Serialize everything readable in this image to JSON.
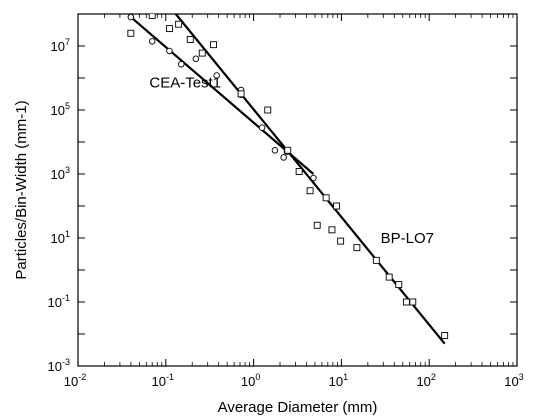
{
  "chart_data": {
    "type": "scatter",
    "title": "",
    "xlabel": "Average Diameter (mm)",
    "ylabel": "Particles/Bin-Width (mm-1)",
    "xscale": "log",
    "yscale": "log",
    "xlim": [
      0.01,
      1000
    ],
    "ylim": [
      0.001,
      100000000
    ],
    "grid": false,
    "x_ticks": [
      {
        "base": "10",
        "exp": "-2",
        "value": 0.01
      },
      {
        "base": "10",
        "exp": "-1",
        "value": 0.1
      },
      {
        "base": "10",
        "exp": "0",
        "value": 1
      },
      {
        "base": "10",
        "exp": "1",
        "value": 10
      },
      {
        "base": "10",
        "exp": "2",
        "value": 100
      },
      {
        "base": "10",
        "exp": "3",
        "value": 1000
      }
    ],
    "y_ticks": [
      {
        "base": "10",
        "exp": "-3",
        "value": 0.001
      },
      {
        "base": "10",
        "exp": "-1",
        "value": 0.1
      },
      {
        "base": "10",
        "exp": "1",
        "value": 10
      },
      {
        "base": "10",
        "exp": "3",
        "value": 1000
      },
      {
        "base": "10",
        "exp": "5",
        "value": 100000
      },
      {
        "base": "10",
        "exp": "7",
        "value": 10000000
      }
    ],
    "series": [
      {
        "name": "CEA-Test1",
        "marker": "circle",
        "points": [
          [
            0.04,
            80000000
          ],
          [
            0.07,
            14000000
          ],
          [
            0.11,
            7000000
          ],
          [
            0.15,
            2700000
          ],
          [
            0.22,
            4000000
          ],
          [
            0.38,
            1200000
          ],
          [
            0.72,
            420000
          ],
          [
            0.72,
            300000
          ],
          [
            1.25,
            28000
          ],
          [
            1.75,
            5500
          ],
          [
            2.2,
            3300
          ],
          [
            2.4,
            5000
          ],
          [
            4.8,
            750
          ]
        ],
        "fit": [
          [
            0.04,
            80000000
          ],
          [
            4.8,
            1000
          ]
        ]
      },
      {
        "name": "BP-LO7",
        "marker": "square",
        "points": [
          [
            0.04,
            25000000
          ],
          [
            0.07,
            90000000
          ],
          [
            0.11,
            35000000
          ],
          [
            0.14,
            48000000
          ],
          [
            0.19,
            16000000
          ],
          [
            0.26,
            6000000
          ],
          [
            0.35,
            11000000
          ],
          [
            0.72,
            320000
          ],
          [
            1.45,
            100000
          ],
          [
            2.45,
            5500
          ],
          [
            3.3,
            1200
          ],
          [
            4.4,
            300
          ],
          [
            5.3,
            25
          ],
          [
            6.7,
            180
          ],
          [
            7.8,
            18
          ],
          [
            8.8,
            100
          ],
          [
            9.8,
            8
          ],
          [
            15,
            5
          ],
          [
            25,
            2
          ],
          [
            35,
            0.6
          ],
          [
            45,
            0.35
          ],
          [
            55,
            0.1
          ],
          [
            65,
            0.1
          ],
          [
            150,
            0.009
          ]
        ],
        "fit": [
          [
            0.13,
            100000000
          ],
          [
            150,
            0.005
          ]
        ]
      }
    ],
    "annotations": [
      {
        "text": "CEA-Test1",
        "x": 0.065,
        "y": 500000
      },
      {
        "text": "BP-LO7",
        "x": 28,
        "y": 7
      }
    ]
  }
}
